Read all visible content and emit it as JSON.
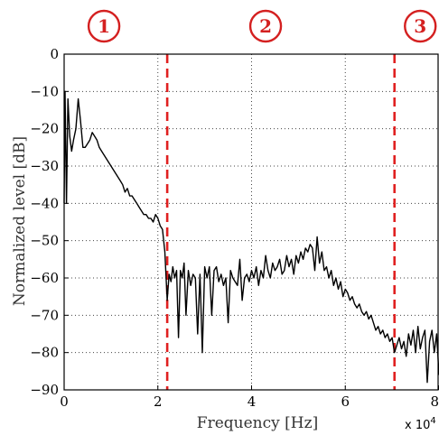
{
  "chart_data": {
    "type": "line",
    "title": "",
    "xlabel": "Frequency [Hz]",
    "ylabel": "Normalized level [dB]",
    "x_multiplier": "x 10",
    "x_multiplier_exponent": "4",
    "xlim": [
      0,
      8
    ],
    "ylim": [
      -90,
      0
    ],
    "x_ticks": [
      "0",
      "2",
      "4",
      "6",
      "8"
    ],
    "y_ticks": [
      "0",
      "−10",
      "−20",
      "−30",
      "−40",
      "−50",
      "−60",
      "−70",
      "−80",
      "−90"
    ],
    "grid": "dotted",
    "legend": "none",
    "colors": {
      "line": "#000000",
      "boundary": "#e02020",
      "region_label": "#d42020"
    },
    "boundaries": [
      2.2,
      7.05
    ],
    "regions": [
      {
        "label": "1",
        "center_x": 0.85
      },
      {
        "label": "2",
        "center_x": 4.3
      },
      {
        "label": "3",
        "center_x": 7.6
      }
    ],
    "series": [
      {
        "x": [
          0.0,
          0.02,
          0.05,
          0.08,
          0.12,
          0.16,
          0.2,
          0.25,
          0.3,
          0.35,
          0.4,
          0.45,
          0.5,
          0.55,
          0.6,
          0.65,
          0.7,
          0.75,
          0.8,
          0.85,
          0.9,
          0.95,
          1.0,
          1.05,
          1.1,
          1.15,
          1.2,
          1.25,
          1.3,
          1.35,
          1.4,
          1.45,
          1.5,
          1.55,
          1.6,
          1.65,
          1.7,
          1.75,
          1.8,
          1.85,
          1.9,
          1.95,
          2.0,
          2.05,
          2.1,
          2.15,
          2.2,
          2.24,
          2.28,
          2.32,
          2.36,
          2.4,
          2.44,
          2.48,
          2.52,
          2.56,
          2.6,
          2.65,
          2.7,
          2.75,
          2.8,
          2.85,
          2.9,
          2.95,
          3.0,
          3.05,
          3.1,
          3.15,
          3.2,
          3.25,
          3.3,
          3.35,
          3.4,
          3.45,
          3.5,
          3.55,
          3.6,
          3.65,
          3.7,
          3.75,
          3.8,
          3.85,
          3.9,
          3.95,
          4.0,
          4.05,
          4.1,
          4.15,
          4.2,
          4.25,
          4.3,
          4.35,
          4.4,
          4.45,
          4.5,
          4.55,
          4.6,
          4.65,
          4.7,
          4.75,
          4.8,
          4.85,
          4.9,
          4.95,
          5.0,
          5.05,
          5.1,
          5.15,
          5.2,
          5.25,
          5.3,
          5.35,
          5.4,
          5.45,
          5.5,
          5.55,
          5.6,
          5.65,
          5.7,
          5.75,
          5.8,
          5.85,
          5.9,
          5.95,
          6.0,
          6.05,
          6.1,
          6.15,
          6.2,
          6.25,
          6.3,
          6.35,
          6.4,
          6.45,
          6.5,
          6.55,
          6.6,
          6.65,
          6.7,
          6.75,
          6.8,
          6.85,
          6.9,
          6.95,
          7.0,
          7.05,
          7.1,
          7.15,
          7.2,
          7.25,
          7.3,
          7.35,
          7.4,
          7.45,
          7.5,
          7.55,
          7.6,
          7.65,
          7.7,
          7.75,
          7.8,
          7.85,
          7.9,
          7.95,
          8.0
        ],
        "y": [
          -40,
          -10,
          -40,
          -12,
          -22,
          -26,
          -23,
          -20,
          -12,
          -18,
          -25,
          -25,
          -24,
          -23,
          -21,
          -22,
          -23,
          -25,
          -26,
          -27,
          -28,
          -29,
          -30,
          -31,
          -32,
          -33,
          -34,
          -35,
          -37,
          -36,
          -38,
          -38,
          -39,
          -40,
          -41,
          -42,
          -43,
          -43,
          -44,
          -44,
          -45,
          -43,
          -44,
          -46,
          -47,
          -53,
          -66,
          -59,
          -61,
          -57,
          -60,
          -58,
          -76,
          -58,
          -60,
          -56,
          -70,
          -58,
          -62,
          -59,
          -60,
          -75,
          -59,
          -80,
          -57,
          -60,
          -57,
          -70,
          -58,
          -57,
          -61,
          -59,
          -62,
          -60,
          -72,
          -58,
          -60,
          -61,
          -62,
          -55,
          -66,
          -60,
          -59,
          -61,
          -58,
          -60,
          -57,
          -62,
          -58,
          -60,
          -54,
          -58,
          -60,
          -56,
          -58,
          -57,
          -55,
          -59,
          -58,
          -54,
          -57,
          -55,
          -59,
          -54,
          -56,
          -53,
          -55,
          -52,
          -53,
          -51,
          -52,
          -58,
          -49,
          -56,
          -53,
          -58,
          -57,
          -60,
          -58,
          -62,
          -60,
          -63,
          -61,
          -65,
          -63,
          -64,
          -66,
          -65,
          -67,
          -68,
          -67,
          -69,
          -70,
          -69,
          -71,
          -70,
          -72,
          -74,
          -73,
          -75,
          -74,
          -76,
          -75,
          -77,
          -76,
          -80,
          -78,
          -76,
          -79,
          -77,
          -81,
          -75,
          -78,
          -74,
          -80,
          -73,
          -79,
          -76,
          -74,
          -88,
          -77,
          -74,
          -80,
          -75,
          -86
        ]
      }
    ]
  }
}
